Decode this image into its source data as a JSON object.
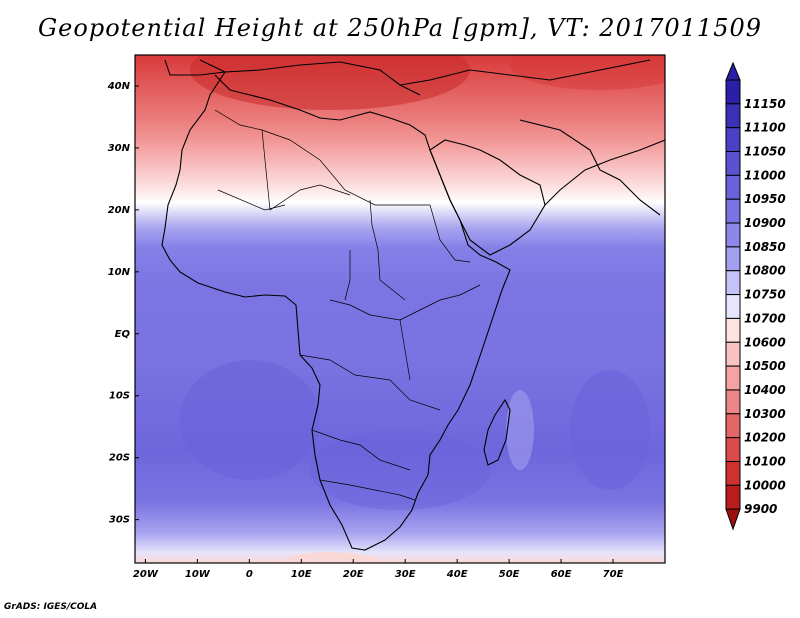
{
  "title": "Geopotential Height at 250hPa [gpm], VT: 2017011509",
  "credit": "GrADS: IGES/COLA",
  "map": {
    "lat_ticks": [
      "40N",
      "30N",
      "20N",
      "10N",
      "EQ",
      "10S",
      "20S",
      "30S"
    ],
    "lon_ticks": [
      "20W",
      "10W",
      "0",
      "10E",
      "20E",
      "30E",
      "40E",
      "50E",
      "60E",
      "70E"
    ],
    "lat_range": [
      -37,
      45
    ],
    "lon_range": [
      -22,
      80
    ]
  },
  "colorbar": {
    "levels": [
      "11150",
      "11100",
      "11050",
      "11000",
      "10950",
      "10900",
      "10850",
      "10800",
      "10750",
      "10700",
      "10600",
      "10500",
      "10400",
      "10300",
      "10200",
      "10100",
      "10000",
      "9900"
    ],
    "colors": [
      "#2a1fa6",
      "#3b30b8",
      "#4b41c6",
      "#5a52d0",
      "#6a62da",
      "#7a73e2",
      "#8d87ea",
      "#a4a0f0",
      "#c4c2f6",
      "#e6e5fb",
      "#fde2e2",
      "#f9c3c3",
      "#f3a3a3",
      "#ec8585",
      "#e46767",
      "#dc4b4b",
      "#cf3030",
      "#b81c1c",
      "#9e1010"
    ]
  }
}
